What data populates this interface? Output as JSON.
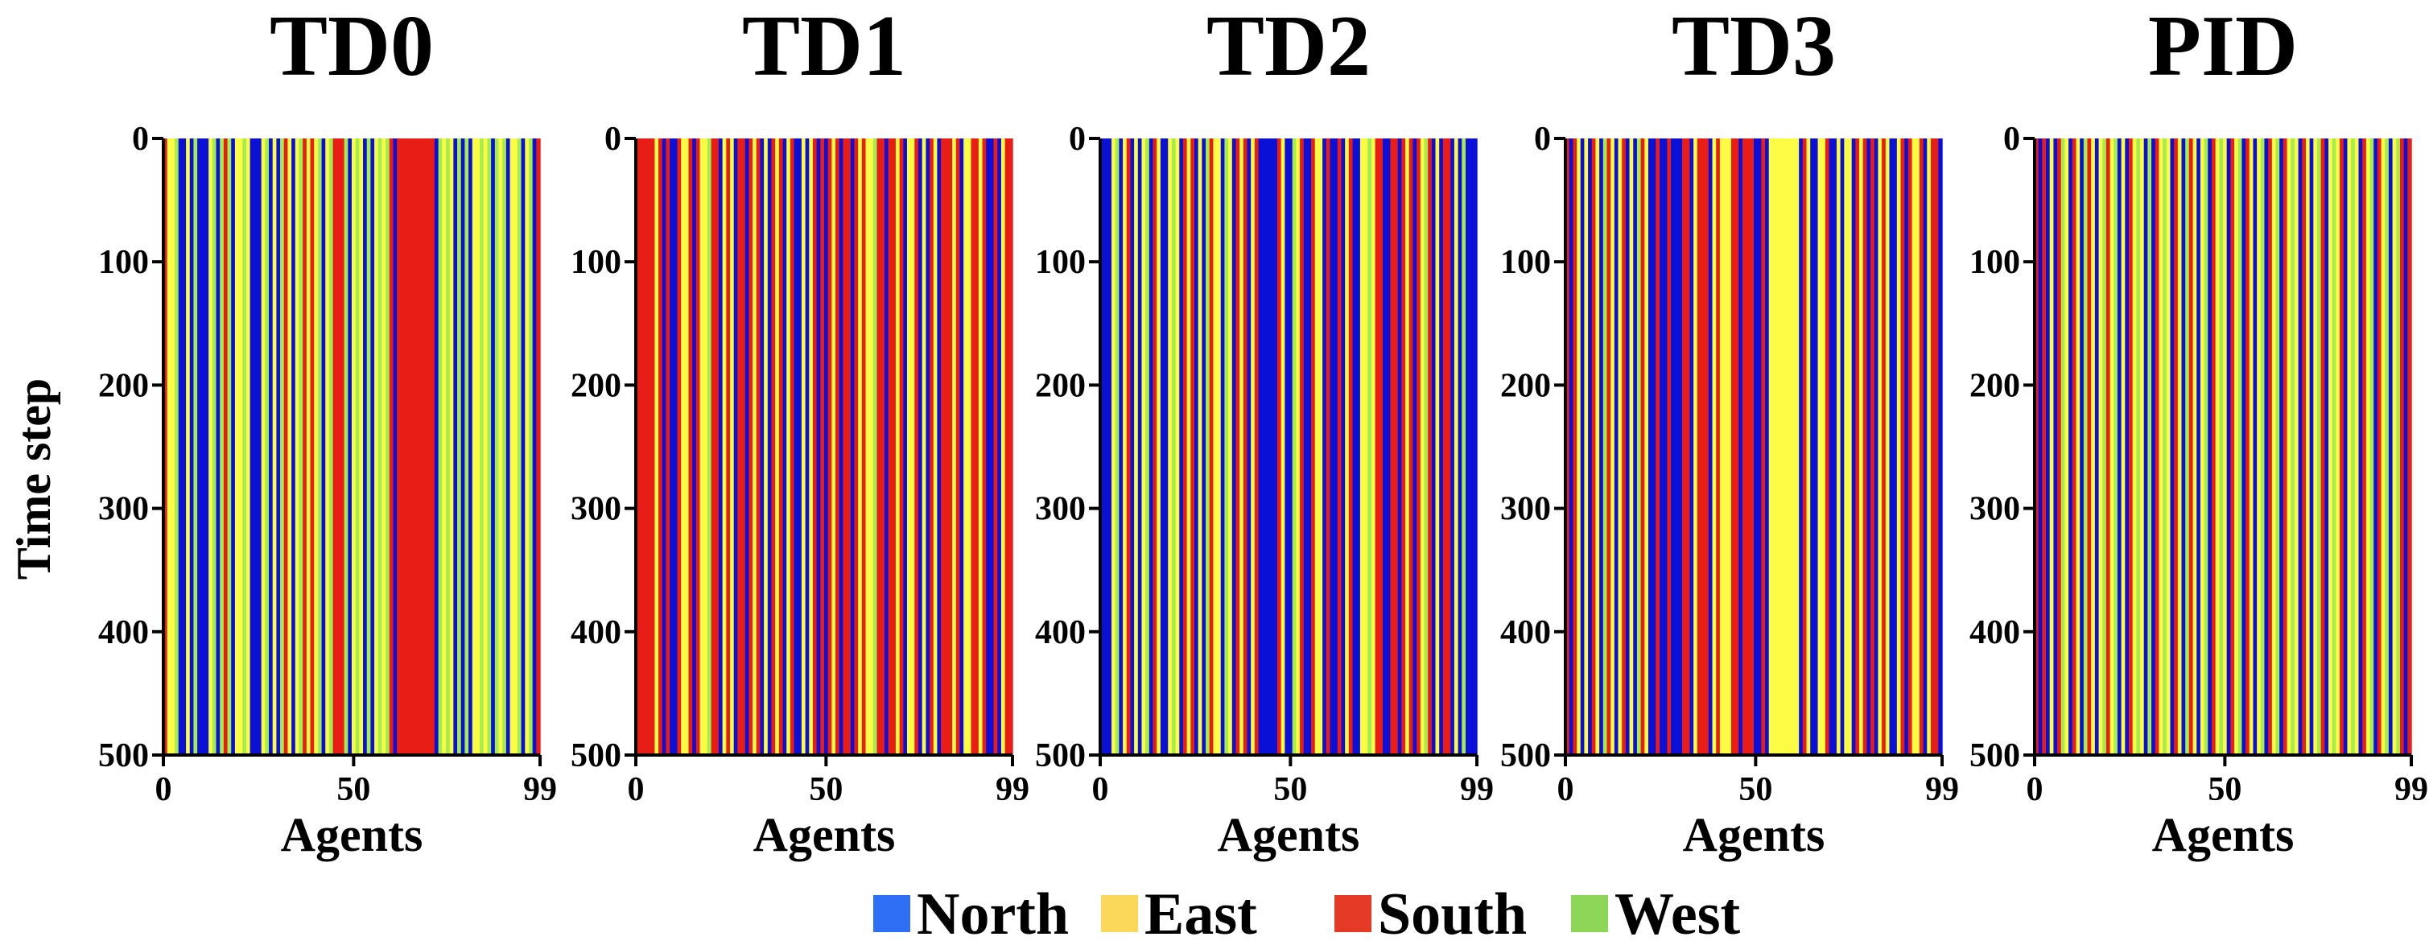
{
  "chart_data": {
    "type": "heatmap",
    "ylabel": "Time step",
    "xlabel": "Agents",
    "x_ticks": [
      "0",
      "50",
      "99"
    ],
    "y_ticks": [
      "0",
      "100",
      "200",
      "300",
      "400",
      "500"
    ],
    "xlim": [
      0,
      99
    ],
    "ylim": [
      0,
      500
    ],
    "legend": {
      "placement": "bottom-center",
      "entries": [
        {
          "label": "North",
          "color": "#2f6ff5"
        },
        {
          "label": "East",
          "color": "#fbd85a"
        },
        {
          "label": "South",
          "color": "#e53b26"
        },
        {
          "label": "West",
          "color": "#8ed657"
        }
      ]
    },
    "cell_colors": {
      "N": "#0a10d6",
      "E": "#fcfc44",
      "S": "#e81e16",
      "W": "#a5ec50"
    },
    "panels": [
      {
        "title": "TD0",
        "agent_action_codes": "SEEWNNENWNNNEWNWSWNEEWENNNEWNENWSENEWSESEWNEWSSSWNEWENWNEWEWSNSSSSSSSSSSNWEWENWNWNEEWEWNWEWNEEWNEWN"
      },
      {
        "title": "TD1",
        "agent_action_codes": "SSSSSESNSNNSEESNSEEWSSNESENSSNSESNENSESNESNNENESNSNSESNSSNSESEEWSSNSSESNEESNENSENSSSESNEESSESNNSNE"
      },
      {
        "title": "TD2",
        "agent_action_codes": "NNNEWNESNENEWNSENNEWENSESNENWSEENWENSESNESNNNNNSENNWESNNSEENSNNSNESNNEEWESSNNSSNSESNSEWSNENSSNENW"
      },
      {
        "title": "TD3",
        "agent_action_codes": "SNSENENSENWSENESNENWSENNSNNSNNNSSNESSSNESEEESSNSSSNNSNEEEEEEEENSENNEESNNENEENSESNSNESENNESNSEESNES"
      },
      {
        "title": "PID",
        "agent_action_codes": "SNSNENSWENSENWSENEWSEWNENSEWENWNSEWENSENWSENEWNSEWENSEWNSENEWNSEWNSEWENSENEWSNEWESNEWENSEWNSEWNEW"
      }
    ]
  }
}
